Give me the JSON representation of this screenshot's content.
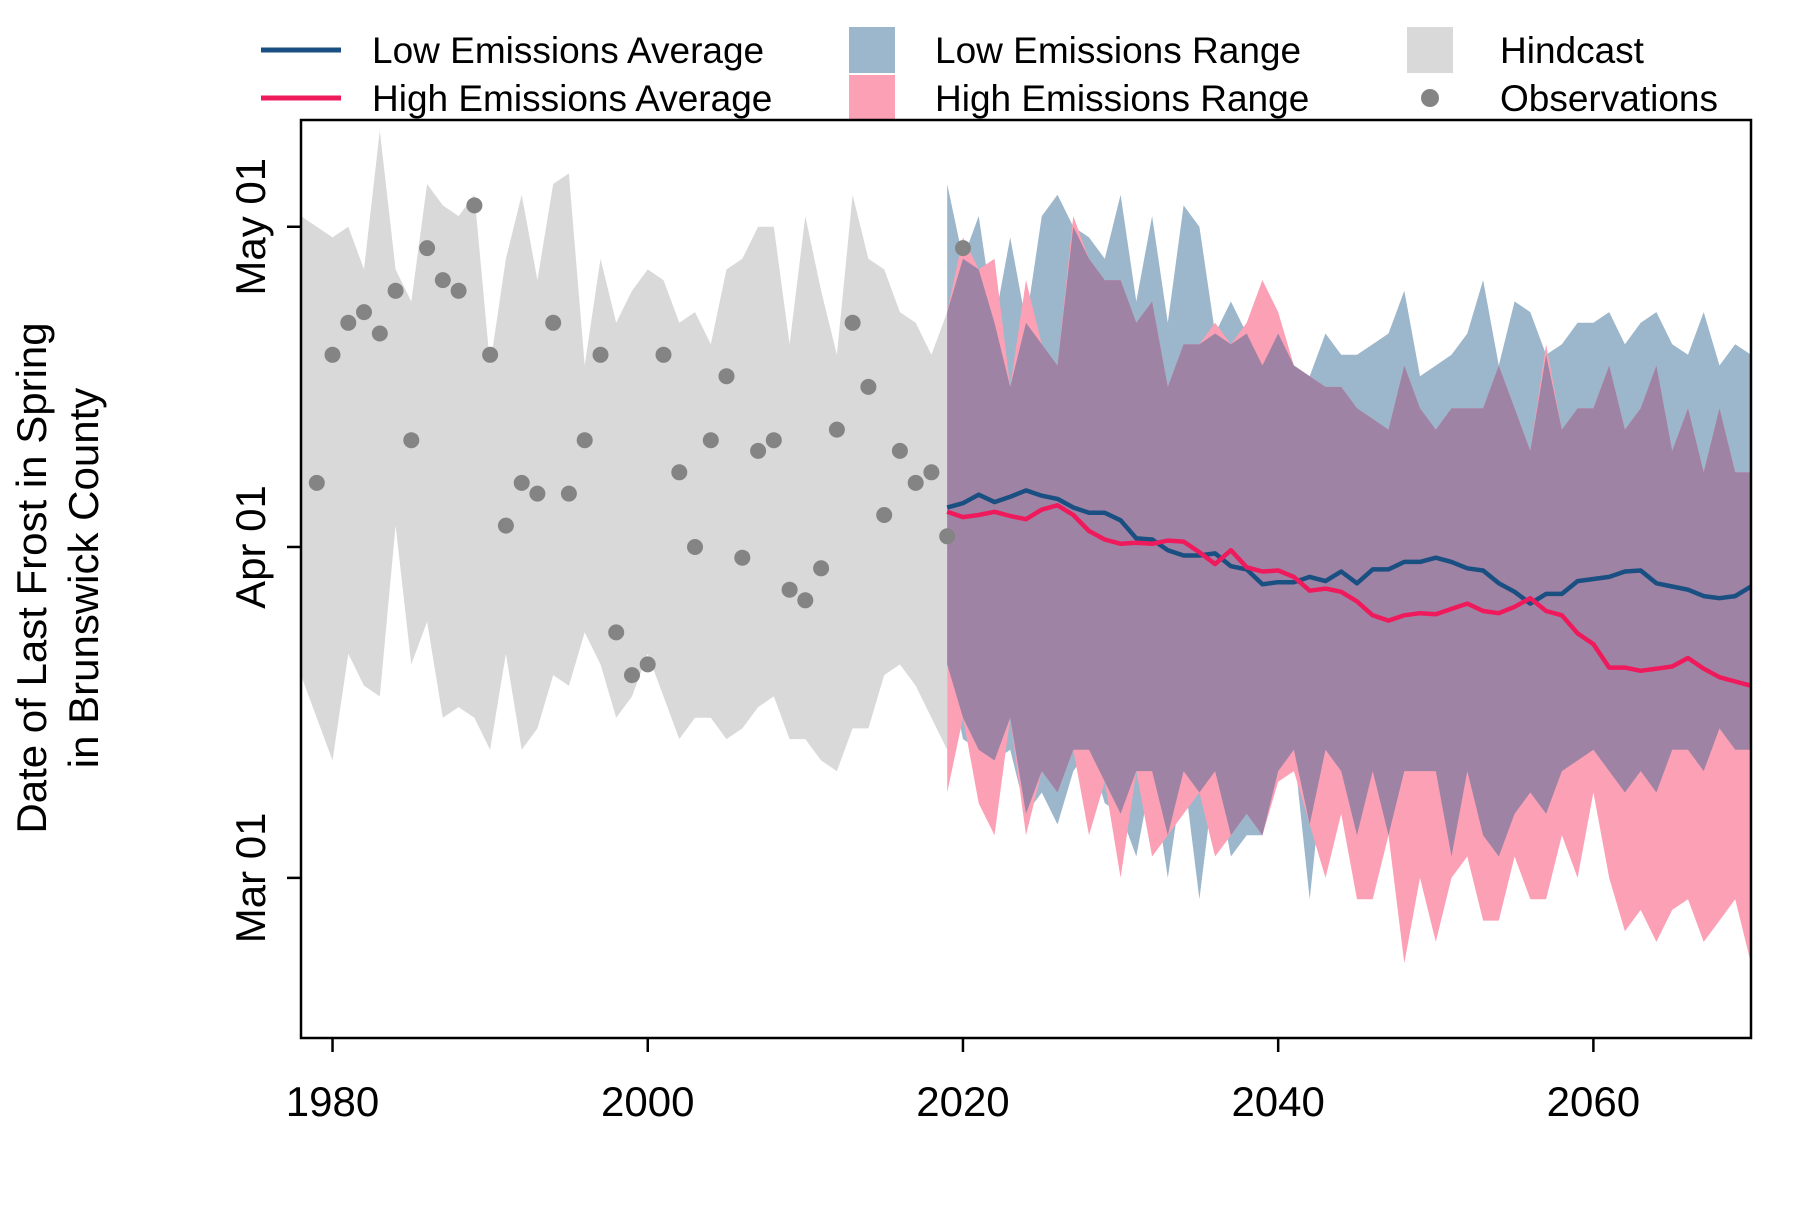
{
  "chart_data": {
    "type": "area",
    "ylabel_lines": [
      "Date of Last Frost in Spring",
      "in Brunswick County"
    ],
    "xlabel": "",
    "xlim": [
      1978,
      2070
    ],
    "ylim": [
      45,
      131
    ],
    "x_ticks": [
      1980,
      2000,
      2020,
      2040,
      2060
    ],
    "y_ticks": [
      {
        "label": "Mar 01",
        "value": 60
      },
      {
        "label": "Apr 01",
        "value": 91
      },
      {
        "label": "May 01",
        "value": 121
      }
    ],
    "grid": false,
    "legend": {
      "placement": "top",
      "entries": [
        {
          "key": "low_avg",
          "label": "Low Emissions Average",
          "symbol": "line",
          "color": "#1a4f82"
        },
        {
          "key": "high_avg",
          "label": "High Emissions Average",
          "symbol": "line",
          "color": "#ef1a5c"
        },
        {
          "key": "low_range",
          "label": "Low Emissions Range",
          "symbol": "box",
          "color": "#9cb6cb"
        },
        {
          "key": "high_range",
          "label": "High Emissions Range",
          "symbol": "box",
          "color": "#fca1b5"
        },
        {
          "key": "hindcast",
          "label": "Hindcast",
          "symbol": "box",
          "color": "#d9d9d9"
        },
        {
          "key": "obs",
          "label": "Observations",
          "symbol": "dot",
          "color": "#848484"
        }
      ]
    },
    "colors": {
      "hindcast": "#d9d9d9",
      "low_range": "#9cb6cb",
      "high_range": "#fca1b5",
      "overlap": "#9f83a5",
      "low_avg": "#1a4f82",
      "high_avg": "#ef1a5c",
      "obs": "#848484"
    },
    "hindcast": {
      "x": [
        1978,
        1980,
        1981,
        1982,
        1983,
        1984,
        1985,
        1986,
        1987,
        1988,
        1989,
        1990,
        1991,
        1992,
        1993,
        1994,
        1995,
        1996,
        1997,
        1998,
        1999,
        2000,
        2001,
        2002,
        2003,
        2004,
        2005,
        2006,
        2007,
        2008,
        2009,
        2010,
        2011,
        2012,
        2013,
        2014,
        2015,
        2016,
        2017,
        2018,
        2019
      ],
      "upper": [
        122,
        120,
        121,
        117,
        130,
        117,
        114,
        125,
        123,
        122,
        124,
        108,
        118,
        124,
        116,
        125,
        126,
        108,
        118,
        112,
        115,
        117,
        116,
        112,
        113,
        110,
        117,
        118,
        121,
        121,
        110,
        122,
        115,
        109,
        124,
        118,
        117,
        113,
        112,
        109,
        113
      ],
      "lower": [
        79,
        71,
        81,
        78,
        77,
        93,
        80,
        84,
        75,
        76,
        75,
        72,
        81,
        72,
        74,
        79,
        78,
        83,
        80,
        75,
        77,
        81,
        77,
        73,
        75,
        75,
        73,
        74,
        76,
        77,
        73,
        73,
        71,
        70,
        74,
        74,
        79,
        80,
        78,
        75,
        72
      ]
    },
    "observations": {
      "x": [
        1979,
        1980,
        1981,
        1982,
        1983,
        1984,
        1985,
        1986,
        1987,
        1988,
        1989,
        1990,
        1991,
        1992,
        1993,
        1994,
        1995,
        1996,
        1997,
        1998,
        1999,
        2000,
        2001,
        2002,
        2003,
        2004,
        2005,
        2006,
        2007,
        2008,
        2009,
        2010,
        2011,
        2012,
        2013,
        2014,
        2015,
        2016,
        2017,
        2018,
        2019,
        2020
      ],
      "y": [
        97,
        109,
        112,
        113,
        111,
        115,
        101,
        119,
        116,
        115,
        123,
        109,
        93,
        97,
        96,
        112,
        96,
        101,
        109,
        83,
        79,
        80,
        109,
        98,
        91,
        101,
        107,
        90,
        100,
        101,
        87,
        86,
        89,
        102,
        112,
        106,
        94,
        100,
        97,
        98,
        92,
        119
      ]
    },
    "low_range": {
      "x": [
        2019,
        2020,
        2021,
        2022,
        2023,
        2024,
        2025,
        2026,
        2027,
        2028,
        2029,
        2030,
        2031,
        2032,
        2033,
        2034,
        2035,
        2036,
        2037,
        2038,
        2039,
        2040,
        2041,
        2042,
        2043,
        2044,
        2045,
        2046,
        2047,
        2048,
        2049,
        2050,
        2051,
        2052,
        2053,
        2054,
        2055,
        2056,
        2057,
        2058,
        2059,
        2060,
        2061,
        2062,
        2063,
        2064,
        2065,
        2066,
        2067,
        2068,
        2069,
        2070
      ],
      "upper": [
        125,
        118,
        122,
        112,
        120,
        112,
        122,
        124,
        121,
        120,
        118,
        124,
        114,
        122,
        112,
        123,
        121,
        111,
        114,
        111,
        108,
        111,
        108,
        107,
        111,
        109,
        109,
        110,
        111,
        115,
        107,
        108,
        109,
        111,
        116,
        108,
        114,
        113,
        109,
        110,
        112,
        112,
        113,
        110,
        112,
        113,
        110,
        109,
        113,
        108,
        110,
        109
      ],
      "lower": [
        80,
        73,
        72,
        71,
        72,
        66,
        68,
        65,
        70,
        72,
        67,
        66,
        62,
        70,
        60,
        70,
        58,
        70,
        62,
        64,
        64,
        70,
        72,
        58,
        72,
        70,
        64,
        70,
        64,
        70,
        70,
        70,
        62,
        70,
        64,
        62,
        66,
        68,
        66,
        70,
        71,
        72,
        70,
        68,
        70,
        68,
        72,
        72,
        70,
        74,
        72,
        72
      ]
    },
    "high_range": {
      "x": [
        2019,
        2020,
        2021,
        2022,
        2023,
        2024,
        2025,
        2026,
        2027,
        2028,
        2029,
        2030,
        2031,
        2032,
        2033,
        2034,
        2035,
        2036,
        2037,
        2038,
        2039,
        2040,
        2041,
        2042,
        2043,
        2044,
        2045,
        2046,
        2047,
        2048,
        2049,
        2050,
        2051,
        2052,
        2053,
        2054,
        2055,
        2056,
        2057,
        2058,
        2059,
        2060,
        2061,
        2062,
        2063,
        2064,
        2065,
        2066,
        2067,
        2068,
        2069,
        2070
      ],
      "upper": [
        113,
        120,
        117,
        118,
        106,
        116,
        110,
        108,
        122,
        118,
        116,
        116,
        112,
        114,
        106,
        110,
        110,
        112,
        110,
        112,
        116,
        113,
        108,
        107,
        106,
        106,
        104,
        103,
        102,
        108,
        104,
        102,
        104,
        104,
        104,
        108,
        104,
        100,
        110,
        102,
        104,
        104,
        108,
        102,
        104,
        108,
        100,
        104,
        98,
        104,
        98,
        98
      ],
      "lower": [
        68,
        75,
        67,
        64,
        75,
        64,
        70,
        68,
        72,
        64,
        69,
        60,
        70,
        62,
        64,
        66,
        68,
        62,
        64,
        66,
        64,
        69,
        70,
        65,
        60,
        66,
        58,
        58,
        64,
        52,
        60,
        54,
        60,
        62,
        56,
        56,
        62,
        58,
        58,
        64,
        60,
        68,
        60,
        55,
        57,
        54,
        57,
        58,
        54,
        56,
        58,
        52
      ]
    },
    "low_avg": {
      "x": [
        2019,
        2020,
        2021,
        2022,
        2023,
        2024,
        2025,
        2026,
        2027,
        2028,
        2029,
        2030,
        2031,
        2032,
        2033,
        2034,
        2035,
        2036,
        2037,
        2038,
        2039,
        2040,
        2041,
        2042,
        2043,
        2044,
        2045,
        2046,
        2047,
        2048,
        2049,
        2050,
        2051,
        2052,
        2053,
        2054,
        2055,
        2056,
        2057,
        2058,
        2059,
        2060,
        2061,
        2062,
        2063,
        2064,
        2065,
        2066,
        2067,
        2068,
        2069,
        2070
      ],
      "y": [
        94.7,
        95.1,
        95.9,
        95.2,
        95.7,
        96.3,
        95.8,
        95.5,
        94.7,
        94.2,
        94.2,
        93.5,
        91.8,
        91.7,
        90.7,
        90.2,
        90.2,
        90.4,
        89.2,
        88.9,
        87.5,
        87.7,
        87.7,
        88.2,
        87.8,
        88.7,
        87.6,
        88.9,
        88.9,
        89.6,
        89.6,
        90.0,
        89.6,
        89.0,
        88.8,
        87.6,
        86.8,
        85.7,
        86.6,
        86.6,
        87.8,
        88.0,
        88.2,
        88.7,
        88.8,
        87.6,
        87.3,
        87.0,
        86.4,
        86.2,
        86.4,
        87.3
      ]
    },
    "high_avg": {
      "x": [
        2019,
        2020,
        2021,
        2022,
        2023,
        2024,
        2025,
        2026,
        2027,
        2028,
        2029,
        2030,
        2031,
        2032,
        2033,
        2034,
        2035,
        2036,
        2037,
        2038,
        2039,
        2040,
        2041,
        2042,
        2043,
        2044,
        2045,
        2046,
        2047,
        2048,
        2049,
        2050,
        2051,
        2052,
        2053,
        2054,
        2055,
        2056,
        2057,
        2058,
        2059,
        2060,
        2061,
        2062,
        2063,
        2064,
        2065,
        2066,
        2067,
        2068,
        2069,
        2070
      ],
      "y": [
        94.3,
        93.8,
        94.0,
        94.3,
        93.9,
        93.6,
        94.5,
        94.9,
        94.0,
        92.5,
        91.7,
        91.3,
        91.4,
        91.3,
        91.6,
        91.5,
        90.5,
        89.4,
        90.7,
        89.1,
        88.7,
        88.8,
        88.2,
        86.9,
        87.1,
        86.8,
        85.9,
        84.6,
        84.1,
        84.6,
        84.8,
        84.7,
        85.2,
        85.7,
        85.0,
        84.8,
        85.4,
        86.2,
        85.0,
        84.6,
        82.9,
        81.9,
        79.7,
        79.7,
        79.4,
        79.6,
        79.8,
        80.6,
        79.6,
        78.8,
        78.4,
        78.0
      ]
    }
  }
}
